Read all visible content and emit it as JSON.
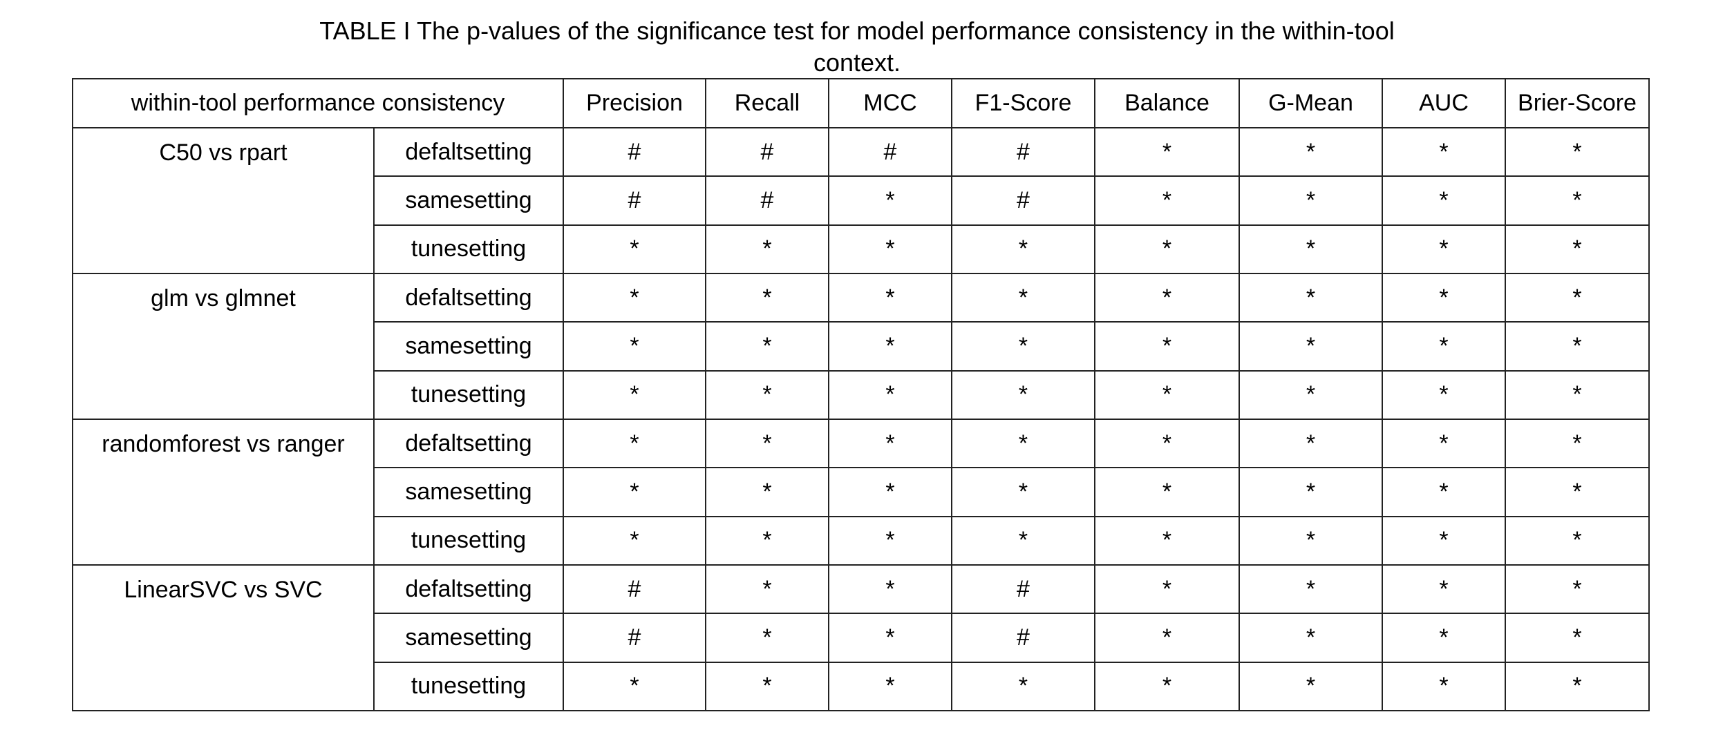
{
  "caption": {
    "line1": "TABLE I The p-values of the significance test for model performance consistency in the within-tool",
    "line2": "context."
  },
  "table": {
    "corner_header": "within-tool performance consistency",
    "metrics": [
      "Precision",
      "Recall",
      "MCC",
      "F1-Score",
      "Balance",
      "G-Mean",
      "AUC",
      "Brier-Score"
    ],
    "groups": [
      {
        "name": "C50 vs rpart",
        "rows": [
          {
            "setting": "defaltsetting",
            "values": [
              "#",
              "#",
              "#",
              "#",
              "*",
              "*",
              "*",
              "*"
            ]
          },
          {
            "setting": "samesetting",
            "values": [
              "#",
              "#",
              "*",
              "#",
              "*",
              "*",
              "*",
              "*"
            ]
          },
          {
            "setting": "tunesetting",
            "values": [
              "*",
              "*",
              "*",
              "*",
              "*",
              "*",
              "*",
              "*"
            ]
          }
        ]
      },
      {
        "name": "glm vs glmnet",
        "rows": [
          {
            "setting": "defaltsetting",
            "values": [
              "*",
              "*",
              "*",
              "*",
              "*",
              "*",
              "*",
              "*"
            ]
          },
          {
            "setting": "samesetting",
            "values": [
              "*",
              "*",
              "*",
              "*",
              "*",
              "*",
              "*",
              "*"
            ]
          },
          {
            "setting": "tunesetting",
            "values": [
              "*",
              "*",
              "*",
              "*",
              "*",
              "*",
              "*",
              "*"
            ]
          }
        ]
      },
      {
        "name": "randomforest vs ranger",
        "rows": [
          {
            "setting": "defaltsetting",
            "values": [
              "*",
              "*",
              "*",
              "*",
              "*",
              "*",
              "*",
              "*"
            ]
          },
          {
            "setting": "samesetting",
            "values": [
              "*",
              "*",
              "*",
              "*",
              "*",
              "*",
              "*",
              "*"
            ]
          },
          {
            "setting": "tunesetting",
            "values": [
              "*",
              "*",
              "*",
              "*",
              "*",
              "*",
              "*",
              "*"
            ]
          }
        ]
      },
      {
        "name": "LinearSVC vs SVC",
        "rows": [
          {
            "setting": "defaltsetting",
            "values": [
              "#",
              "*",
              "*",
              "#",
              "*",
              "*",
              "*",
              "*"
            ]
          },
          {
            "setting": "samesetting",
            "values": [
              "#",
              "*",
              "*",
              "#",
              "*",
              "*",
              "*",
              "*"
            ]
          },
          {
            "setting": "tunesetting",
            "values": [
              "*",
              "*",
              "*",
              "*",
              "*",
              "*",
              "*",
              "*"
            ]
          }
        ]
      }
    ]
  }
}
